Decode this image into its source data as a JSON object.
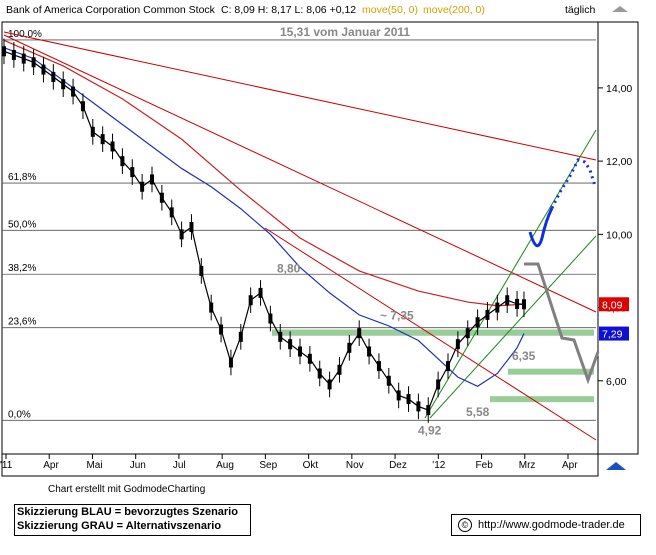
{
  "header": {
    "security": "Bank of America Corporation Common Stock",
    "quote": "C: 8,09 H: 8,17 L: 8,06 +0,12",
    "ma50_label": "move(50, 0)",
    "ma200_label": "move(200, 0)",
    "period": "täglich"
  },
  "footer": {
    "credit": "Chart erstellt mit GodmodeCharting",
    "legend_blue": "Skizzierung BLAU = bevorzugtes Szenario",
    "legend_gray": "Skizzierung GRAU = Alternativszenario",
    "url": "http://www.godmode-trader.de",
    "copyright_symbol": "©"
  },
  "chart_data": {
    "type": "candlestick",
    "x_months": [
      "'11",
      "Apr",
      "Mai",
      "Jun",
      "Jul",
      "Aug",
      "Sep",
      "Okt",
      "Nov",
      "Dez",
      "'12",
      "Feb",
      "Mrz",
      "Apr"
    ],
    "y_ticks": [
      "14,00",
      "12,00",
      "10,00",
      "8,00",
      "6,00"
    ],
    "y_tick_values": [
      14,
      12,
      10,
      8,
      6
    ],
    "ylim": [
      4.0,
      15.8
    ],
    "fib_levels": [
      {
        "label": "100,0%",
        "value": 15.31
      },
      {
        "label": "61,8%",
        "value": 11.4
      },
      {
        "label": "50,0%",
        "value": 10.11
      },
      {
        "label": "38,2%",
        "value": 8.91
      },
      {
        "label": "23,6%",
        "value": 7.45
      },
      {
        "label": "0,0%",
        "value": 4.92
      }
    ],
    "annotations": [
      {
        "text": "15,31 vom Januar 2011",
        "value": 15.31
      },
      {
        "text": "8,80",
        "value": 8.8
      },
      {
        "text": "~ 7,35",
        "value": 7.35
      },
      {
        "text": "6,35",
        "value": 6.35
      },
      {
        "text": "5,58",
        "value": 5.58
      },
      {
        "text": "4,92",
        "value": 4.92
      }
    ],
    "price_badges": [
      {
        "text": "8,09",
        "value": 8.09,
        "color": "#dd0000"
      },
      {
        "text": "7,29",
        "value": 7.29,
        "color": "#1010d0"
      }
    ],
    "support_zones": [
      {
        "value_low": 7.23,
        "value_high": 7.4
      },
      {
        "value_low": 6.18,
        "value_high": 6.33
      },
      {
        "value_low": 5.43,
        "value_high": 5.58
      }
    ],
    "series": [
      {
        "name": "move(50, 0)",
        "color": "#2030c0",
        "x": [
          0,
          30,
          60,
          90,
          120,
          150,
          180,
          210,
          240,
          270,
          300,
          330,
          360,
          390,
          420,
          440,
          460,
          480,
          500,
          520,
          527
        ],
        "y": [
          15.1,
          14.8,
          14.2,
          13.6,
          13.0,
          12.4,
          11.8,
          11.3,
          10.7,
          10.0,
          9.1,
          8.4,
          7.8,
          7.5,
          7.1,
          6.6,
          6.1,
          5.85,
          6.2,
          6.9,
          7.29
        ]
      },
      {
        "name": "move(200, 0)",
        "color": "#cc2020",
        "x": [
          0,
          60,
          120,
          180,
          240,
          300,
          360,
          420,
          470,
          500,
          527
        ],
        "y": [
          15.3,
          14.6,
          13.7,
          12.6,
          11.2,
          9.9,
          9.0,
          8.45,
          8.15,
          8.05,
          8.09
        ]
      },
      {
        "name": "Kerzen",
        "color": "#000000",
        "x": [
          0,
          10,
          20,
          30,
          40,
          50,
          60,
          70,
          80,
          90,
          100,
          110,
          120,
          130,
          140,
          150,
          160,
          170,
          180,
          190,
          200,
          210,
          220,
          230,
          240,
          250,
          260,
          270,
          280,
          290,
          300,
          310,
          320,
          330,
          340,
          350,
          360,
          370,
          380,
          390,
          400,
          410,
          420,
          430,
          440,
          450,
          460,
          470,
          480,
          490,
          500,
          510,
          520,
          527
        ],
        "y": [
          15.0,
          14.9,
          14.8,
          14.7,
          14.5,
          14.3,
          14.1,
          13.9,
          13.5,
          12.8,
          12.6,
          12.4,
          12.0,
          11.7,
          11.3,
          11.5,
          11.0,
          10.6,
          10.0,
          10.2,
          9.0,
          8.0,
          7.4,
          6.5,
          7.2,
          8.2,
          8.4,
          7.7,
          7.2,
          7.0,
          6.8,
          6.6,
          6.2,
          5.9,
          6.3,
          6.9,
          7.3,
          6.8,
          6.4,
          6.0,
          5.6,
          5.5,
          5.3,
          5.2,
          5.9,
          6.4,
          7.0,
          7.3,
          7.6,
          7.8,
          8.0,
          8.2,
          8.1,
          8.09
        ]
      }
    ],
    "grid": true
  }
}
